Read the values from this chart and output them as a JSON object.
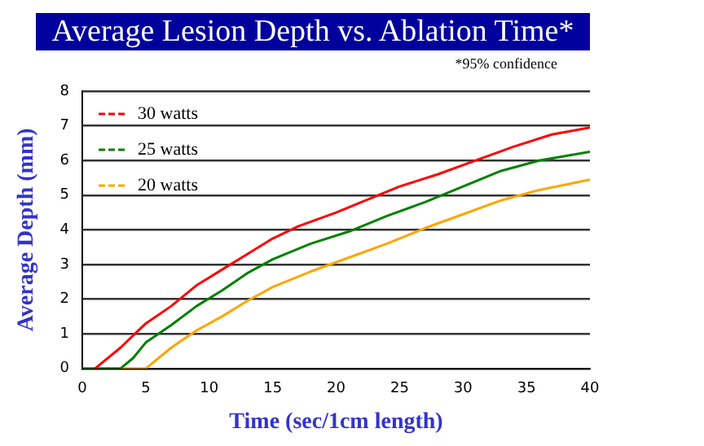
{
  "chart_data": {
    "type": "line",
    "title": "Average Lesion Depth vs. Ablation Time*",
    "xlabel": "Time (sec/1cm length)",
    "ylabel": "Average Depth (mm)",
    "annotations": [
      "*95% confidence"
    ],
    "xlim": [
      0,
      40
    ],
    "xticks": [
      0,
      5,
      10,
      15,
      20,
      25,
      30,
      35,
      40
    ],
    "ylim": [
      0,
      8
    ],
    "yticks": [
      0,
      1,
      2,
      3,
      4,
      5,
      6,
      7,
      8
    ],
    "grid": "y",
    "legend": "top left",
    "marker": "none",
    "series": [
      {
        "name": "30 watts",
        "color": "#ff0000",
        "x": [
          1,
          3,
          5,
          7,
          9,
          11,
          13,
          15,
          17,
          20,
          23,
          25,
          28,
          31,
          34,
          37,
          40
        ],
        "values": [
          0,
          0.6,
          1.3,
          1.8,
          2.4,
          2.85,
          3.3,
          3.75,
          4.1,
          4.5,
          4.95,
          5.25,
          5.6,
          6.0,
          6.4,
          6.75,
          6.95
        ]
      },
      {
        "name": "25 watts",
        "color": "#008000",
        "x": [
          0,
          3,
          4,
          5,
          7,
          9,
          11,
          13,
          15,
          18,
          21,
          24,
          27,
          30,
          33,
          36,
          40
        ],
        "values": [
          0,
          0,
          0.3,
          0.75,
          1.25,
          1.8,
          2.25,
          2.75,
          3.15,
          3.6,
          3.95,
          4.4,
          4.8,
          5.25,
          5.7,
          6.0,
          6.25
        ]
      },
      {
        "name": "20 watts",
        "color": "#ffa500",
        "x": [
          3,
          5,
          6,
          7,
          9,
          11,
          13,
          15,
          18,
          21,
          24,
          27,
          30,
          33,
          36,
          40
        ],
        "values": [
          0,
          0,
          0.3,
          0.6,
          1.1,
          1.5,
          1.95,
          2.35,
          2.8,
          3.2,
          3.6,
          4.05,
          4.45,
          4.85,
          5.15,
          5.45
        ]
      }
    ]
  }
}
